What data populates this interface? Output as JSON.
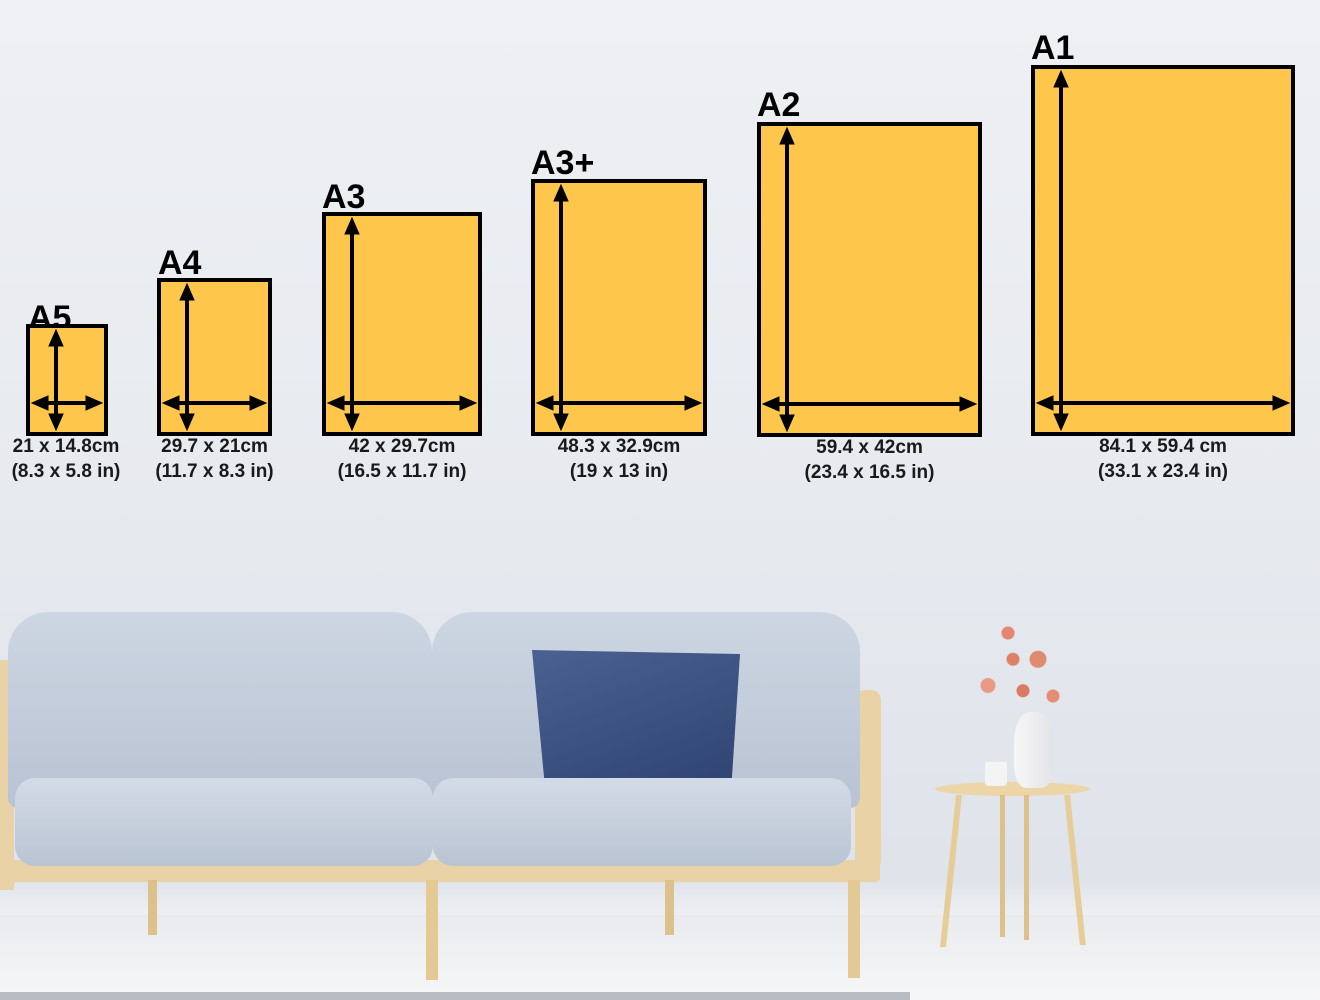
{
  "colors": {
    "poster_fill": "#fec64b",
    "poster_border": "#000000",
    "pillow": "#3d5482",
    "sofa": "#c9d3e0",
    "wood": "#e9d3a6"
  },
  "posters": [
    {
      "name": "A5",
      "cm": "21 x 14.8cm",
      "inches": "(8.3 x 5.8 in)"
    },
    {
      "name": "A4",
      "cm": "29.7 x 21cm",
      "inches": "(11.7 x 8.3 in)"
    },
    {
      "name": "A3",
      "cm": "42 x 29.7cm",
      "inches": "(16.5 x 11.7 in)"
    },
    {
      "name": "A3+",
      "cm": "48.3 x 32.9cm",
      "inches": "(19 x 13 in)"
    },
    {
      "name": "A2",
      "cm": "59.4 x 42cm",
      "inches": "(23.4 x 16.5 in)"
    },
    {
      "name": "A1",
      "cm": "84.1 x 59.4 cm",
      "inches": "(33.1 x 23.4 in)"
    }
  ]
}
